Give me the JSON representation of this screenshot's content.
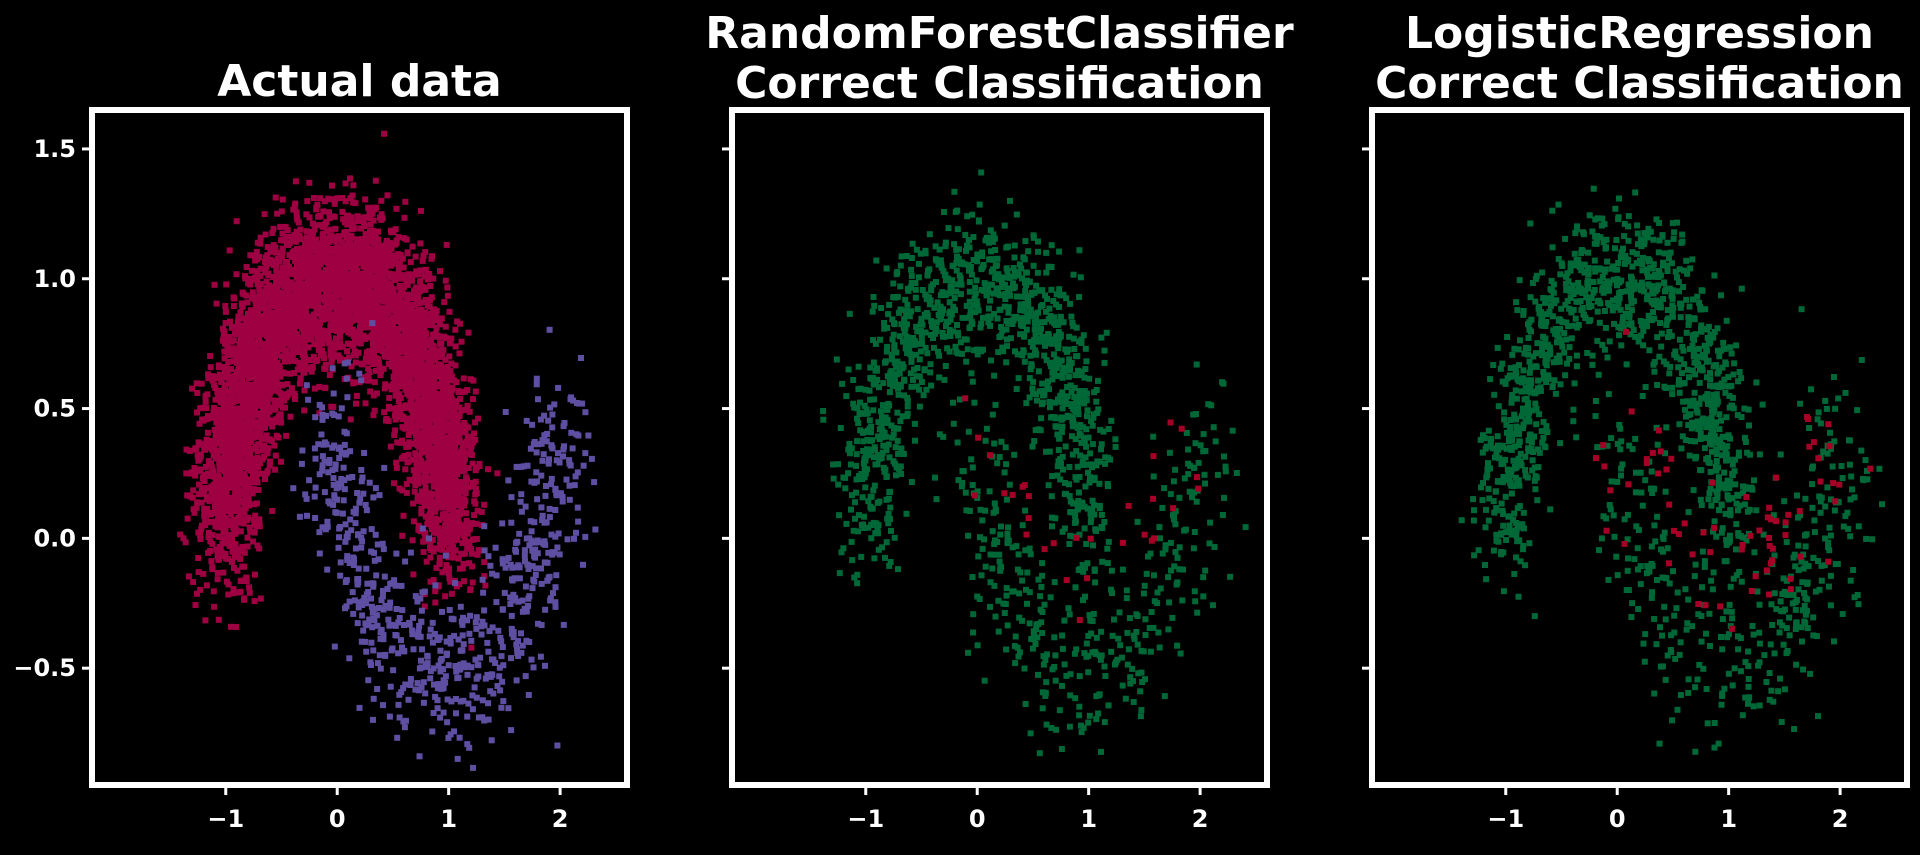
{
  "colors": {
    "background": "#000000",
    "frame": "#ffffff",
    "class_upper": "#9e0142",
    "class_lower": "#5e4fa2",
    "correct": "#006837",
    "incorrect": "#a50026"
  },
  "chart_data": [
    {
      "type": "scatter",
      "title": "Actual data",
      "xlim": [
        -2.2,
        2.6
      ],
      "ylim": [
        -0.95,
        1.65
      ],
      "xticks": [
        -1,
        0,
        1,
        2
      ],
      "yticks": [
        -0.5,
        0.0,
        0.5,
        1.0,
        1.5
      ],
      "xtick_labels": [
        "−1",
        "0",
        "1",
        "2"
      ],
      "ytick_labels": [
        "−0.5",
        "0.0",
        "0.5",
        "1.0",
        "1.5"
      ],
      "grid": false,
      "series": [
        {
          "color_key": "class_upper",
          "n_points": 5000,
          "shape": "upper moon: center (0,0), radius 1, angle 0–180°, noise 0.15"
        },
        {
          "color_key": "class_lower",
          "n_points": 700,
          "shape": "lower moon: center (1,0.5), radius 1, angle 180–360°, noise 0.15"
        }
      ]
    },
    {
      "type": "scatter",
      "title": "RandomForestClassifier\nCorrect Classification",
      "xlim": [
        -2.2,
        2.6
      ],
      "ylim": [
        -0.95,
        1.65
      ],
      "xticks": [
        -1,
        0,
        1,
        2
      ],
      "yticks": [
        -0.5,
        0.0,
        0.5,
        1.0,
        1.5
      ],
      "xtick_labels": [
        "−1",
        "0",
        "1",
        "2"
      ],
      "ytick_labels": [
        "",
        "",
        "",
        "",
        ""
      ],
      "grid": false,
      "series": [
        {
          "color_key": "correct",
          "n_points": 1500
        },
        {
          "color_key": "incorrect",
          "n_points": 30
        }
      ]
    },
    {
      "type": "scatter",
      "title": "LogisticRegression\nCorrect Classification",
      "xlim": [
        -2.2,
        2.6
      ],
      "ylim": [
        -0.95,
        1.65
      ],
      "xticks": [
        -1,
        0,
        1,
        2
      ],
      "yticks": [
        -0.5,
        0.0,
        0.5,
        1.0,
        1.5
      ],
      "xtick_labels": [
        "−1",
        "0",
        "1",
        "2"
      ],
      "ytick_labels": [
        "",
        "",
        "",
        "",
        ""
      ],
      "grid": false,
      "series": [
        {
          "color_key": "correct",
          "n_points": 1500
        },
        {
          "color_key": "incorrect",
          "n_points": 70
        }
      ]
    }
  ]
}
